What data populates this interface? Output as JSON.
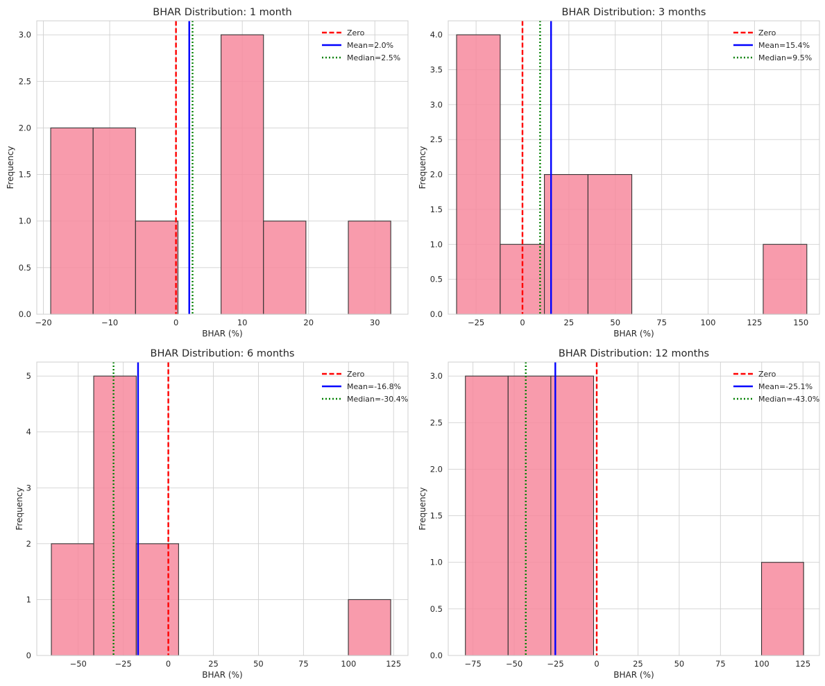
{
  "chart_data": [
    {
      "type": "bar",
      "title": "BHAR Distribution: 1 month",
      "xlabel": "BHAR (%)",
      "ylabel": "Frequency",
      "xlim": [
        -21,
        35
      ],
      "ylim": [
        0,
        3.15
      ],
      "xticks": [
        -20,
        -10,
        0,
        10,
        20,
        30
      ],
      "xtick_labels": [
        "−20",
        "−10",
        "0",
        "10",
        "20",
        "30"
      ],
      "yticks": [
        0,
        0.5,
        1,
        1.5,
        2,
        2.5,
        3
      ],
      "ytick_labels": [
        "0.0",
        "0.5",
        "1.0",
        "1.5",
        "2.0",
        "2.5",
        "3.0"
      ],
      "bins": [
        [
          -18.9,
          -12.5,
          2
        ],
        [
          -12.5,
          -6.1,
          2
        ],
        [
          -6.1,
          0.3,
          1
        ],
        [
          0.3,
          6.8,
          0
        ],
        [
          6.8,
          13.2,
          3
        ],
        [
          13.2,
          19.6,
          1
        ],
        [
          19.6,
          26.0,
          0
        ],
        [
          26.0,
          32.4,
          1
        ]
      ],
      "lines": [
        {
          "name": "Zero",
          "label": "Zero",
          "x": 0,
          "style": "dashed",
          "color": "#ff0000"
        },
        {
          "name": "Mean",
          "label": "Mean=2.0%",
          "x": 2.0,
          "style": "solid",
          "color": "#0000ff"
        },
        {
          "name": "Median",
          "label": "Median=2.5%",
          "x": 2.5,
          "style": "dotted",
          "color": "#008000"
        }
      ],
      "grid": true,
      "legend": "upper right"
    },
    {
      "type": "bar",
      "title": "BHAR Distribution: 3 months",
      "xlabel": "BHAR (%)",
      "ylabel": "Frequency",
      "xlim": [
        -40,
        160
      ],
      "ylim": [
        0,
        4.2
      ],
      "xticks": [
        -25,
        0,
        25,
        50,
        75,
        100,
        125,
        150
      ],
      "xtick_labels": [
        "−25",
        "0",
        "25",
        "50",
        "75",
        "100",
        "125",
        "150"
      ],
      "yticks": [
        0,
        0.5,
        1,
        1.5,
        2,
        2.5,
        3,
        3.5,
        4
      ],
      "ytick_labels": [
        "0.0",
        "0.5",
        "1.0",
        "1.5",
        "2.0",
        "2.5",
        "3.0",
        "3.5",
        "4.0"
      ],
      "bins": [
        [
          -35.5,
          -12.0,
          4
        ],
        [
          -12.0,
          11.8,
          1
        ],
        [
          11.8,
          35.3,
          2
        ],
        [
          35.3,
          58.9,
          2
        ],
        [
          58.9,
          82.5,
          0
        ],
        [
          82.5,
          106.1,
          0
        ],
        [
          106.1,
          129.7,
          0
        ],
        [
          129.7,
          153.2,
          1
        ]
      ],
      "lines": [
        {
          "name": "Zero",
          "label": "Zero",
          "x": 0,
          "style": "dashed",
          "color": "#ff0000"
        },
        {
          "name": "Mean",
          "label": "Mean=15.4%",
          "x": 15.4,
          "style": "solid",
          "color": "#0000ff"
        },
        {
          "name": "Median",
          "label": "Median=9.5%",
          "x": 9.5,
          "style": "dotted",
          "color": "#008000"
        }
      ],
      "grid": true,
      "legend": "upper right"
    },
    {
      "type": "bar",
      "title": "BHAR Distribution: 6 months",
      "xlabel": "BHAR (%)",
      "ylabel": "Frequency",
      "xlim": [
        -73,
        133
      ],
      "ylim": [
        0,
        5.25
      ],
      "xticks": [
        -50,
        -25,
        0,
        25,
        50,
        75,
        100,
        125
      ],
      "xtick_labels": [
        "−50",
        "−25",
        "0",
        "25",
        "50",
        "75",
        "100",
        "125"
      ],
      "yticks": [
        0,
        1,
        2,
        3,
        4,
        5
      ],
      "ytick_labels": [
        "0",
        "1",
        "2",
        "3",
        "4",
        "5"
      ],
      "bins": [
        [
          -64.9,
          -41.4,
          2
        ],
        [
          -41.4,
          -17.8,
          5
        ],
        [
          -17.8,
          5.7,
          2
        ],
        [
          5.7,
          29.2,
          0
        ],
        [
          29.2,
          52.8,
          0
        ],
        [
          52.8,
          76.3,
          0
        ],
        [
          76.3,
          99.9,
          0
        ],
        [
          99.9,
          123.4,
          1
        ]
      ],
      "lines": [
        {
          "name": "Zero",
          "label": "Zero",
          "x": 0,
          "style": "dashed",
          "color": "#ff0000"
        },
        {
          "name": "Mean",
          "label": "Mean=-16.8%",
          "x": -16.8,
          "style": "solid",
          "color": "#0000ff"
        },
        {
          "name": "Median",
          "label": "Median=-30.4%",
          "x": -30.4,
          "style": "dotted",
          "color": "#008000"
        }
      ],
      "grid": true,
      "legend": "upper right"
    },
    {
      "type": "bar",
      "title": "BHAR Distribution: 12 months",
      "xlabel": "BHAR (%)",
      "ylabel": "Frequency",
      "xlim": [
        -90,
        135
      ],
      "ylim": [
        0,
        3.15
      ],
      "xticks": [
        -75,
        -50,
        -25,
        0,
        25,
        50,
        75,
        100,
        125
      ],
      "xtick_labels": [
        "−75",
        "−50",
        "−25",
        "0",
        "25",
        "50",
        "75",
        "100",
        "125"
      ],
      "yticks": [
        0,
        0.5,
        1,
        1.5,
        2,
        2.5,
        3
      ],
      "ytick_labels": [
        "0.0",
        "0.5",
        "1.0",
        "1.5",
        "2.0",
        "2.5",
        "3.0"
      ],
      "bins": [
        [
          -79.6,
          -53.7,
          3
        ],
        [
          -53.7,
          -27.8,
          3
        ],
        [
          -27.8,
          -1.9,
          3
        ],
        [
          -1.9,
          23.9,
          0
        ],
        [
          23.9,
          49.8,
          0
        ],
        [
          49.8,
          75.6,
          0
        ],
        [
          75.6,
          99.9,
          0
        ],
        [
          99.9,
          125.4,
          1
        ]
      ],
      "lines": [
        {
          "name": "Zero",
          "label": "Zero",
          "x": 0,
          "style": "dashed",
          "color": "#ff0000"
        },
        {
          "name": "Mean",
          "label": "Mean=-25.1%",
          "x": -25.1,
          "style": "solid",
          "color": "#0000ff"
        },
        {
          "name": "Median",
          "label": "Median=-43.0%",
          "x": -43.0,
          "style": "dotted",
          "color": "#008000"
        }
      ],
      "grid": true,
      "legend": "upper right"
    }
  ],
  "colors": {
    "bar_fill": "#f7899d",
    "bar_edge": "#333333",
    "grid": "#d0d0d0",
    "spine": "#cfcfcf",
    "text": "#262626"
  }
}
